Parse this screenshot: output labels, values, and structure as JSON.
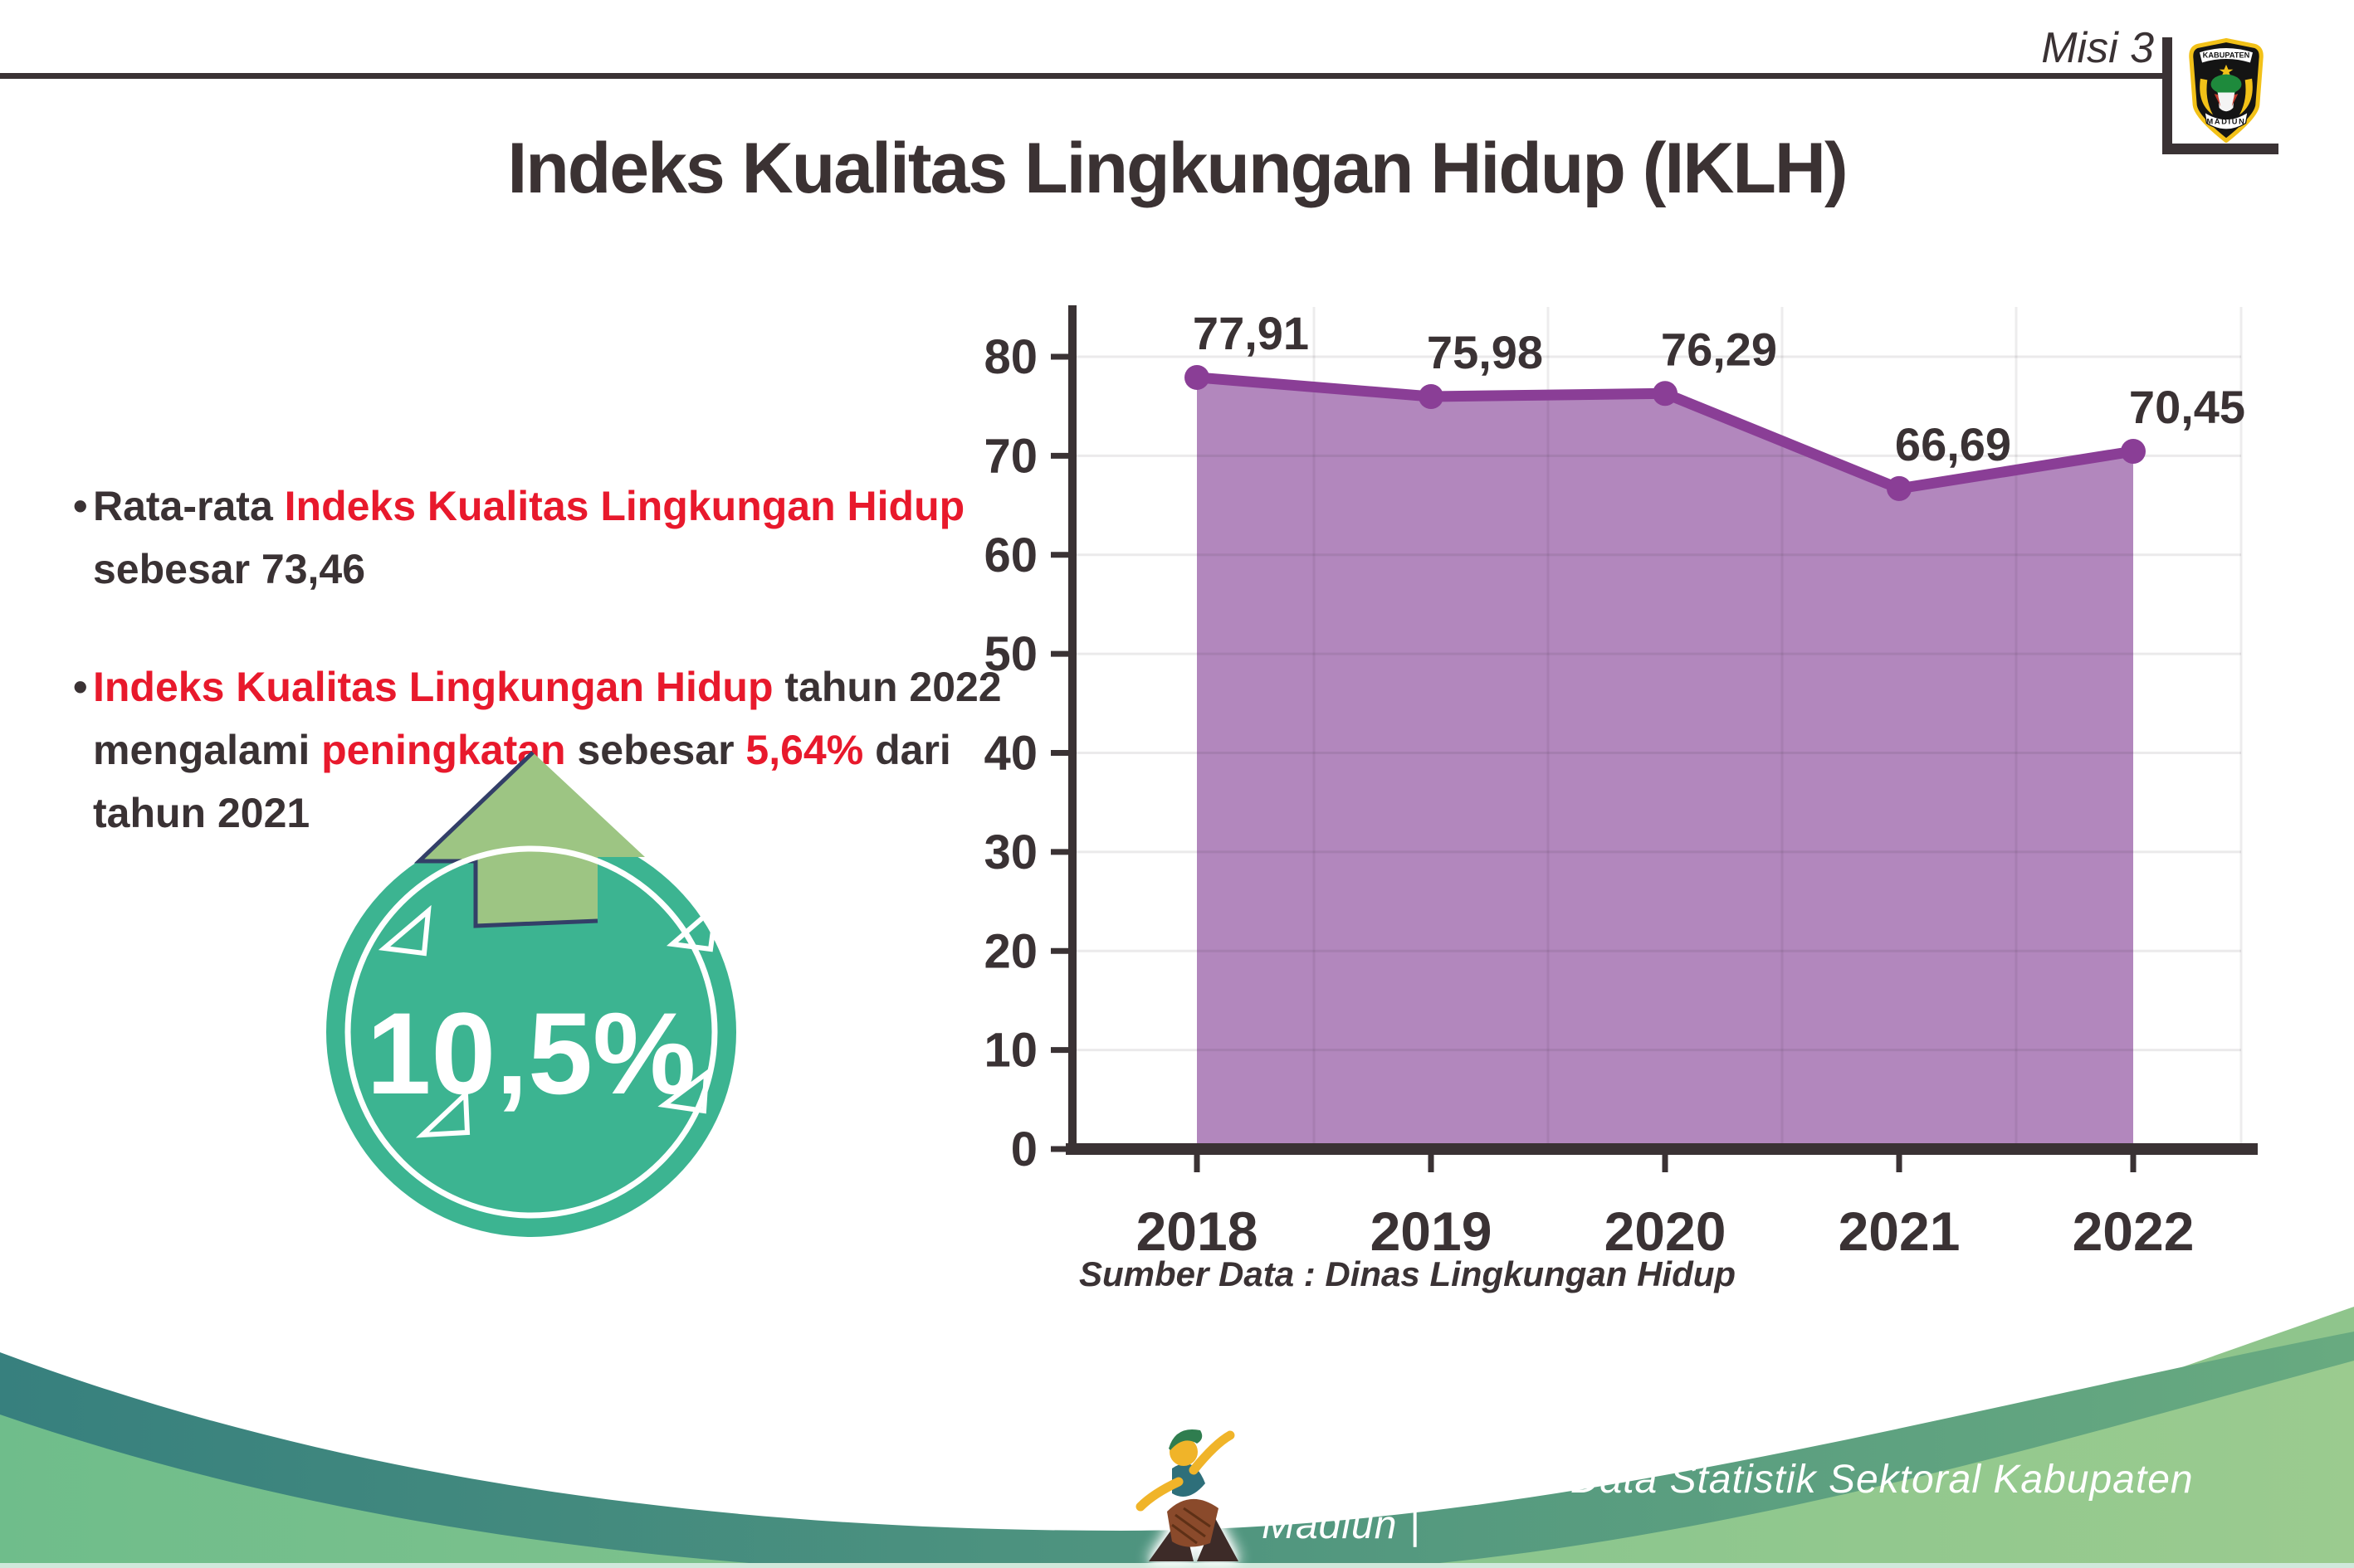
{
  "header": {
    "misi_label": "Misi 3",
    "logo": {
      "top_text": "KABUPATEN",
      "bottom_text": "MADIUN"
    }
  },
  "title": "Indeks Kualitas Lingkungan Hidup (IKLH)",
  "bullets": {
    "bullet_char": "•",
    "bullet1": {
      "prefix": "Rata-rata ",
      "highlight": "Indeks Kualitas Lingkungan Hidup",
      "line2": "sebesar 73,46"
    },
    "bullet2": {
      "highlight1": "Indeks Kualitas Lingkungan Hidup",
      "text1": " tahun 2022",
      "text2": "mengalami ",
      "highlight2": "peningkatan",
      "text3": " sebesar ",
      "highlight3": "5,64%",
      "text4": " dari",
      "line3": "tahun 2021"
    }
  },
  "badge": {
    "value": "10,5%"
  },
  "chart_data": {
    "type": "area",
    "categories": [
      "2018",
      "2019",
      "2020",
      "2021",
      "2022"
    ],
    "values": [
      77.91,
      75.98,
      76.29,
      66.69,
      70.45
    ],
    "labels": [
      "77,91",
      "75,98",
      "76,29",
      "66,69",
      "70,45"
    ],
    "title": "Indeks Kualitas Lingkungan Hidup (IKLH)",
    "xlabel": "",
    "ylabel": "",
    "ylim": [
      0,
      80
    ],
    "ytick_step": 10,
    "grid": true,
    "legend": "none",
    "source": "Sumber Data : Dinas Lingkungan Hidup",
    "colors": {
      "line": "#8a3e96",
      "fill": "#b287bd",
      "axis": "#3a3234"
    }
  },
  "footer": {
    "caption": "Media Infografis Data Statistik Sektoral Kabupaten Madiun |"
  }
}
